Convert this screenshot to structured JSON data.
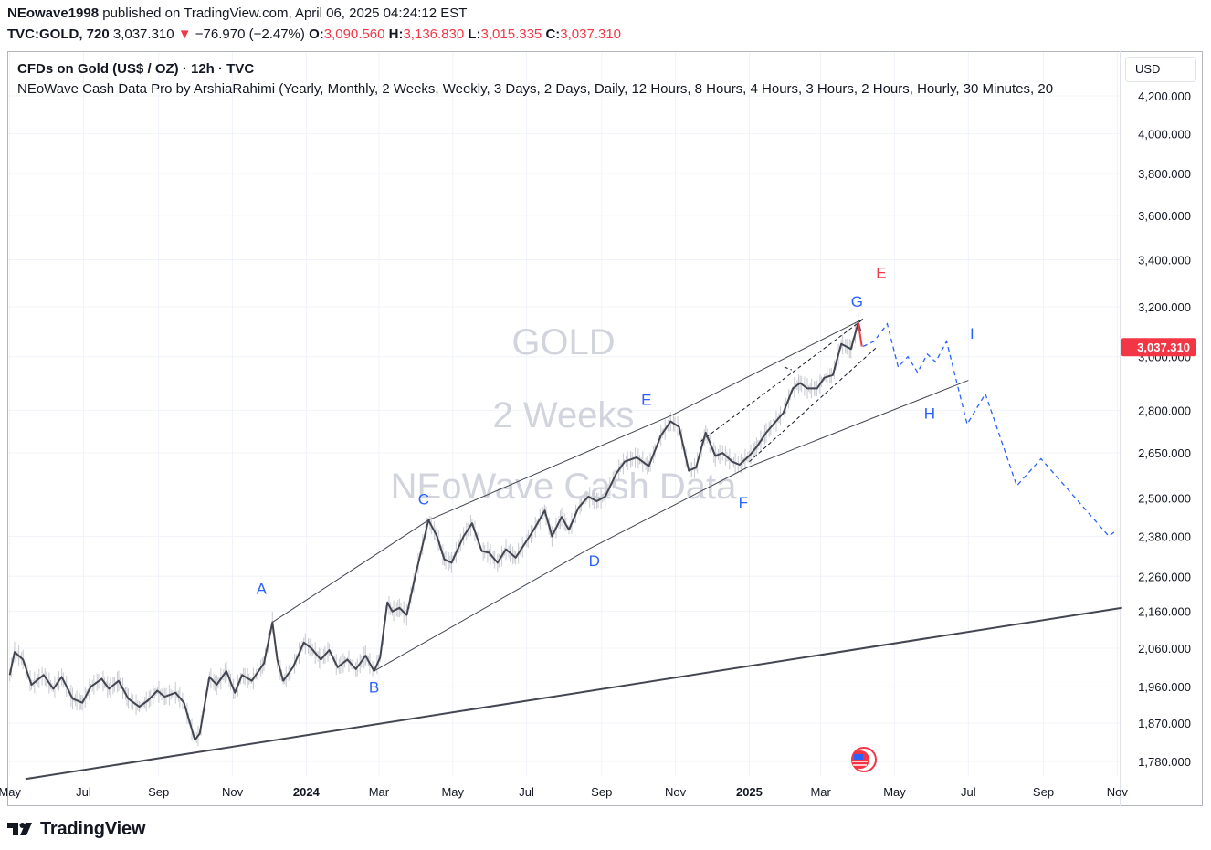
{
  "header": {
    "author": "NEowave1998",
    "published": "published on TradingView.com, April 06, 2025 04:24:12 EST",
    "ticker": "TVC:GOLD, 720",
    "last": "3,037.310",
    "down_arrow": "▼",
    "change": "−76.970 (−2.47%)",
    "o_label": "O:",
    "o_value": "3,090.560",
    "h_label": "H:",
    "h_value": "3,136.830",
    "l_label": "L:",
    "l_value": "3,015.335",
    "c_label": "C:",
    "c_value": "3,037.310"
  },
  "legend": {
    "symbol": "CFDs on Gold (US$ / OZ) · 12h · TVC",
    "indicator": "NEoWave Cash Data Pro by ArshiaRahimi (Yearly, Monthly, 2 Weeks, Weekly, 3 Days, 2 Days, Daily, 12 Hours, 8 Hours, 4 Hours, 3 Hours, 2 Hours, Hourly, 30 Minutes, 20"
  },
  "currency_button": "USD",
  "branding": "TradingView",
  "colors": {
    "price_line": "#434651",
    "accent_blue": "#2962ff",
    "label_red": "#f23645",
    "watermark": "#d1d4dc",
    "faint_bars": "#c7c9cf"
  },
  "chart_data": {
    "type": "line",
    "title": "",
    "watermark": [
      "GOLD",
      "2 Weeks",
      "NEoWave Cash Data"
    ],
    "y_axis": {
      "scale": "log",
      "ticks": [
        "4,200.000",
        "4,000.000",
        "3,800.000",
        "3,600.000",
        "3,400.000",
        "3,200.000",
        "3,000.000",
        "2,800.000",
        "2,650.000",
        "2,500.000",
        "2,380.000",
        "2,260.000",
        "2,160.000",
        "2,060.000",
        "1,960.000",
        "1,870.000",
        "1,780.000"
      ],
      "tick_values": [
        4200,
        4000,
        3800,
        3600,
        3400,
        3200,
        3000,
        2800,
        2650,
        2500,
        2380,
        2260,
        2160,
        2060,
        1960,
        1870,
        1780
      ]
    },
    "x_axis": {
      "ticks": [
        "May",
        "Jul",
        "Sep",
        "Nov",
        "2024",
        "Mar",
        "May",
        "Jul",
        "Sep",
        "Nov",
        "2025",
        "Mar",
        "May",
        "Jul",
        "Sep",
        "Nov"
      ],
      "tick_dates": [
        "2023-05-01",
        "2023-07-01",
        "2023-09-01",
        "2023-11-01",
        "2024-01-01",
        "2024-03-01",
        "2024-05-01",
        "2024-07-01",
        "2024-09-01",
        "2024-11-01",
        "2025-01-01",
        "2025-03-01",
        "2025-05-01",
        "2025-07-01",
        "2025-09-01",
        "2025-11-01"
      ],
      "bold": [
        "2024",
        "2025"
      ]
    },
    "last_price_label": "3,037.310",
    "series": [
      {
        "style": "solid",
        "points": [
          [
            "2023-05-01",
            1990
          ],
          [
            "2023-05-05",
            2050
          ],
          [
            "2023-05-12",
            2030
          ],
          [
            "2023-05-19",
            1965
          ],
          [
            "2023-05-29",
            1990
          ],
          [
            "2023-06-06",
            1955
          ],
          [
            "2023-06-13",
            1985
          ],
          [
            "2023-06-22",
            1930
          ],
          [
            "2023-06-30",
            1920
          ],
          [
            "2023-07-07",
            1960
          ],
          [
            "2023-07-16",
            1980
          ],
          [
            "2023-07-22",
            1955
          ],
          [
            "2023-07-30",
            1975
          ],
          [
            "2023-08-07",
            1930
          ],
          [
            "2023-08-16",
            1910
          ],
          [
            "2023-08-23",
            1925
          ],
          [
            "2023-08-31",
            1950
          ],
          [
            "2023-09-06",
            1935
          ],
          [
            "2023-09-15",
            1945
          ],
          [
            "2023-09-22",
            1920
          ],
          [
            "2023-10-01",
            1830
          ],
          [
            "2023-10-05",
            1845
          ],
          [
            "2023-10-13",
            1985
          ],
          [
            "2023-10-19",
            1965
          ],
          [
            "2023-10-27",
            2000
          ],
          [
            "2023-11-03",
            1945
          ],
          [
            "2023-11-09",
            1990
          ],
          [
            "2023-11-17",
            1975
          ],
          [
            "2023-11-27",
            2020
          ],
          [
            "2023-12-04",
            2130
          ],
          [
            "2023-12-08",
            2030
          ],
          [
            "2023-12-13",
            1975
          ],
          [
            "2023-12-21",
            2010
          ],
          [
            "2023-12-30",
            2075
          ],
          [
            "2024-01-05",
            2060
          ],
          [
            "2024-01-13",
            2030
          ],
          [
            "2024-01-20",
            2055
          ],
          [
            "2024-01-27",
            2010
          ],
          [
            "2024-02-04",
            2030
          ],
          [
            "2024-02-11",
            2005
          ],
          [
            "2024-02-19",
            2040
          ],
          [
            "2024-02-26",
            2000
          ],
          [
            "2024-03-02",
            2035
          ],
          [
            "2024-03-08",
            2185
          ],
          [
            "2024-03-12",
            2160
          ],
          [
            "2024-03-18",
            2170
          ],
          [
            "2024-03-24",
            2150
          ],
          [
            "2024-03-31",
            2260
          ],
          [
            "2024-04-11",
            2430
          ],
          [
            "2024-04-18",
            2380
          ],
          [
            "2024-04-24",
            2310
          ],
          [
            "2024-04-30",
            2300
          ],
          [
            "2024-05-10",
            2380
          ],
          [
            "2024-05-17",
            2420
          ],
          [
            "2024-05-25",
            2335
          ],
          [
            "2024-05-31",
            2330
          ],
          [
            "2024-06-07",
            2300
          ],
          [
            "2024-06-14",
            2340
          ],
          [
            "2024-06-22",
            2315
          ],
          [
            "2024-06-30",
            2360
          ],
          [
            "2024-07-07",
            2400
          ],
          [
            "2024-07-16",
            2460
          ],
          [
            "2024-07-22",
            2380
          ],
          [
            "2024-07-30",
            2440
          ],
          [
            "2024-08-05",
            2400
          ],
          [
            "2024-08-13",
            2470
          ],
          [
            "2024-08-21",
            2505
          ],
          [
            "2024-08-28",
            2490
          ],
          [
            "2024-09-04",
            2505
          ],
          [
            "2024-09-13",
            2580
          ],
          [
            "2024-09-20",
            2620
          ],
          [
            "2024-09-30",
            2635
          ],
          [
            "2024-10-10",
            2605
          ],
          [
            "2024-10-20",
            2710
          ],
          [
            "2024-10-28",
            2760
          ],
          [
            "2024-11-04",
            2740
          ],
          [
            "2024-11-12",
            2590
          ],
          [
            "2024-11-18",
            2600
          ],
          [
            "2024-11-26",
            2720
          ],
          [
            "2024-12-04",
            2640
          ],
          [
            "2024-12-10",
            2650
          ],
          [
            "2024-12-18",
            2620
          ],
          [
            "2024-12-24",
            2610
          ],
          [
            "2025-01-01",
            2640
          ],
          [
            "2025-01-07",
            2670
          ],
          [
            "2025-01-15",
            2720
          ],
          [
            "2025-01-21",
            2750
          ],
          [
            "2025-01-29",
            2790
          ],
          [
            "2025-02-06",
            2880
          ],
          [
            "2025-02-12",
            2900
          ],
          [
            "2025-02-18",
            2880
          ],
          [
            "2025-02-26",
            2880
          ],
          [
            "2025-03-04",
            2920
          ],
          [
            "2025-03-11",
            2930
          ],
          [
            "2025-03-18",
            3050
          ],
          [
            "2025-03-26",
            3030
          ],
          [
            "2025-04-01",
            3135
          ],
          [
            "2025-04-03",
            3100
          ]
        ]
      },
      {
        "style": "dashed",
        "points": [
          [
            "2025-04-05",
            3040
          ],
          [
            "2025-04-14",
            3060
          ],
          [
            "2025-04-25",
            3130
          ],
          [
            "2025-05-04",
            2960
          ],
          [
            "2025-05-12",
            3000
          ],
          [
            "2025-05-20",
            2940
          ],
          [
            "2025-05-28",
            3010
          ],
          [
            "2025-06-04",
            2980
          ],
          [
            "2025-06-13",
            3060
          ],
          [
            "2025-06-21",
            2910
          ],
          [
            "2025-06-30",
            2750
          ],
          [
            "2025-07-15",
            2860
          ],
          [
            "2025-08-10",
            2540
          ],
          [
            "2025-08-30",
            2630
          ],
          [
            "2025-10-25",
            2380
          ],
          [
            "2025-11-01",
            2400
          ]
        ]
      }
    ],
    "trendlines": [
      {
        "from": [
          "2023-05-14",
          1740
        ],
        "to": [
          "2025-11-05",
          2170
        ],
        "width": 2
      },
      {
        "from": [
          "2023-12-04",
          2130
        ],
        "to": [
          "2024-04-11",
          2430
        ],
        "width": 1
      },
      {
        "from": [
          "2024-04-11",
          2430
        ],
        "to": [
          "2024-10-28",
          2780
        ],
        "width": 1
      },
      {
        "from": [
          "2024-10-28",
          2780
        ],
        "to": [
          "2025-04-05",
          3150
        ],
        "width": 1
      },
      {
        "from": [
          "2024-02-26",
          2000
        ],
        "to": [
          "2024-08-21",
          2340
        ],
        "width": 1
      },
      {
        "from": [
          "2024-08-21",
          2340
        ],
        "to": [
          "2024-12-30",
          2600
        ],
        "width": 1
      },
      {
        "from": [
          "2024-12-30",
          2600
        ],
        "to": [
          "2025-07-01",
          2910
        ],
        "width": 1
      }
    ],
    "dashed_black": [
      {
        "from": [
          "2024-11-22",
          2690
        ],
        "to": [
          "2025-04-04",
          3145
        ]
      },
      {
        "from": [
          "2025-01-01",
          2620
        ],
        "to": [
          "2025-04-17",
          3040
        ]
      },
      {
        "from": [
          "2025-01-30",
          2960
        ],
        "to": [
          "2025-02-05",
          2950
        ]
      }
    ],
    "red_leg": {
      "from": [
        "2025-04-01",
        3135
      ],
      "to": [
        "2025-04-04",
        3040
      ]
    },
    "wave_labels": [
      {
        "text": "A",
        "date": "2023-11-25",
        "price": 2210,
        "color": "#2962ff"
      },
      {
        "text": "B",
        "date": "2024-02-26",
        "price": 1945,
        "color": "#2962ff"
      },
      {
        "text": "C",
        "date": "2024-04-07",
        "price": 2480,
        "color": "#2962ff"
      },
      {
        "text": "D",
        "date": "2024-08-26",
        "price": 2290,
        "color": "#2962ff"
      },
      {
        "text": "E",
        "date": "2024-10-08",
        "price": 2820,
        "color": "#2962ff"
      },
      {
        "text": "F",
        "date": "2024-12-27",
        "price": 2470,
        "color": "#2962ff"
      },
      {
        "text": "G",
        "date": "2025-03-31",
        "price": 3200,
        "color": "#2962ff"
      },
      {
        "text": "E",
        "date": "2025-04-20",
        "price": 3320,
        "color": "#f23645"
      },
      {
        "text": "H",
        "date": "2025-05-30",
        "price": 2770,
        "color": "#2962ff"
      },
      {
        "text": "I",
        "date": "2025-07-04",
        "price": 3070,
        "color": "#2962ff"
      }
    ]
  }
}
